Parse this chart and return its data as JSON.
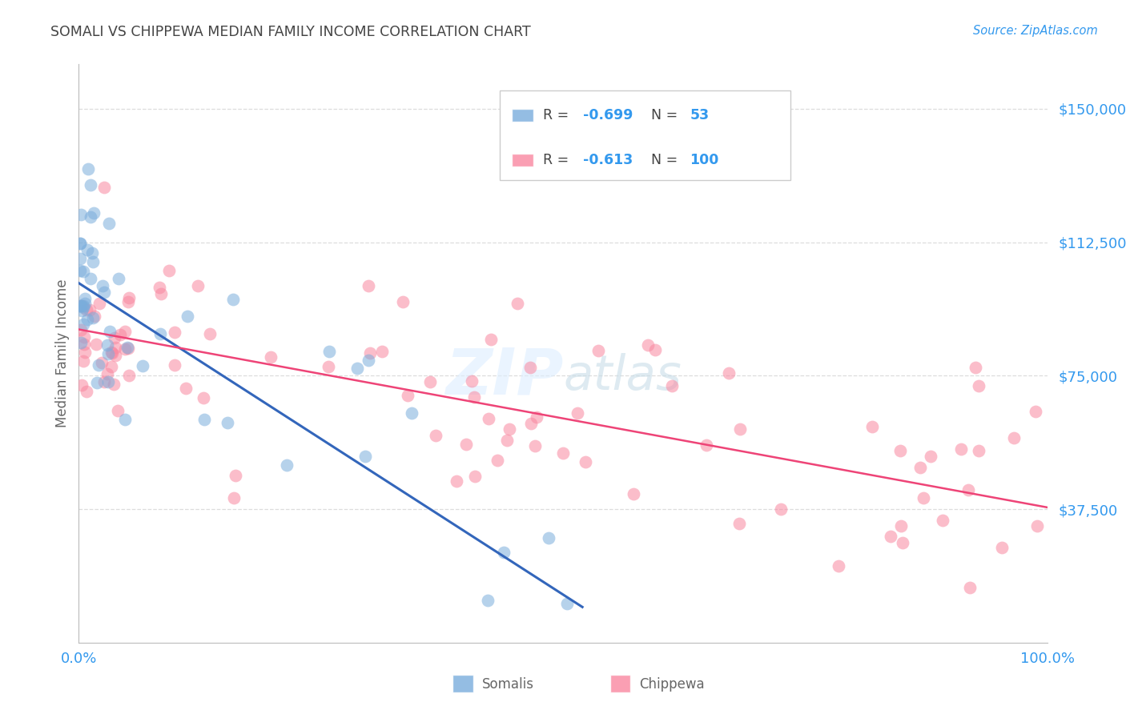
{
  "title": "SOMALI VS CHIPPEWA MEDIAN FAMILY INCOME CORRELATION CHART",
  "source": "Source: ZipAtlas.com",
  "ylabel": "Median Family Income",
  "somali_color": "#7aaddc",
  "chippewa_color": "#f987a0",
  "somali_line_color": "#3366bb",
  "chippewa_line_color": "#ee4477",
  "tick_label_color": "#3399ee",
  "title_color": "#444444",
  "axis_label_color": "#666666",
  "grid_color": "#dddddd",
  "background_color": "#ffffff",
  "watermark_color": "#ddeeff",
  "legend_border_color": "#cccccc",
  "N_somali": 53,
  "N_chippewa": 100,
  "R_somali": -0.699,
  "R_chippewa": -0.613,
  "somali_intercept": 101000,
  "somali_slope": -175000,
  "chippewa_intercept": 88000,
  "chippewa_slope": -50000,
  "ylim_low": 0,
  "ylim_high": 162500,
  "xlim_low": 0.0,
  "xlim_high": 1.0,
  "ytick_vals": [
    37500,
    75000,
    112500,
    150000
  ],
  "ytick_labels": [
    "$37,500",
    "$75,000",
    "$112,500",
    "$150,000"
  ]
}
